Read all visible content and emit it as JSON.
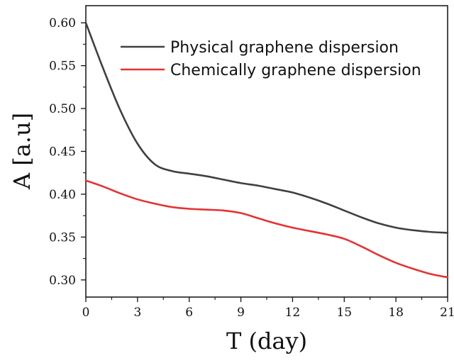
{
  "chart_data": {
    "type": "line",
    "xlabel": "T (day)",
    "ylabel": "A [a.u]",
    "xlim": [
      0,
      21
    ],
    "ylim": [
      0.28,
      0.62
    ],
    "xticks": [
      0,
      3,
      6,
      9,
      12,
      15,
      18,
      21
    ],
    "xtick_labels": [
      "0",
      "3",
      "6",
      "9",
      "12",
      "15",
      "18",
      "21"
    ],
    "yticks": [
      0.3,
      0.35,
      0.4,
      0.45,
      0.5,
      0.55,
      0.6
    ],
    "ytick_labels": [
      "0.30",
      "0.35",
      "0.40",
      "0.45",
      "0.50",
      "0.55",
      "0.60"
    ],
    "grid": false,
    "legend_position": "top-right",
    "series": [
      {
        "name": "Physical graphene dispersion",
        "color": "#404040",
        "x": [
          0,
          1,
          2,
          3,
          4,
          5,
          6,
          7,
          8,
          9,
          10,
          11,
          12,
          13,
          14,
          15,
          16,
          17,
          18,
          19,
          20,
          21
        ],
        "y": [
          0.6,
          0.547,
          0.498,
          0.459,
          0.435,
          0.427,
          0.424,
          0.421,
          0.417,
          0.413,
          0.41,
          0.406,
          0.402,
          0.396,
          0.389,
          0.381,
          0.373,
          0.366,
          0.361,
          0.358,
          0.356,
          0.355
        ]
      },
      {
        "name": "Chemically graphene dispersion",
        "color": "#e63232",
        "x": [
          0,
          1,
          2,
          3,
          4,
          5,
          6,
          7,
          8,
          9,
          10,
          11,
          12,
          13,
          14,
          15,
          16,
          17,
          18,
          19,
          20,
          21
        ],
        "y": [
          0.416,
          0.409,
          0.401,
          0.394,
          0.389,
          0.385,
          0.383,
          0.382,
          0.381,
          0.378,
          0.372,
          0.366,
          0.361,
          0.357,
          0.353,
          0.348,
          0.339,
          0.329,
          0.32,
          0.313,
          0.307,
          0.303
        ]
      }
    ]
  }
}
